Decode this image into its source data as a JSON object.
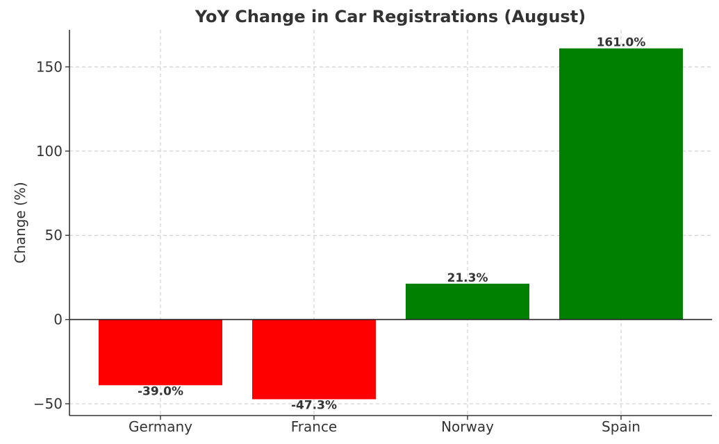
{
  "chart_data": {
    "type": "bar",
    "title": "YoY Change in Car Registrations (August)",
    "xlabel": "",
    "ylabel": "Change (%)",
    "categories": [
      "Germany",
      "France",
      "Norway",
      "Spain"
    ],
    "values": [
      -39.0,
      -47.3,
      21.3,
      161.0
    ],
    "data_labels": [
      "-39.0%",
      "-47.3%",
      "21.3%",
      "161.0%"
    ],
    "bar_colors": [
      "#ff0000",
      "#ff0000",
      "#008000",
      "#008000"
    ],
    "ylim": [
      -57,
      172
    ],
    "yticks": [
      -50,
      0,
      50,
      100,
      150
    ],
    "ytick_labels": [
      "−50",
      "0",
      "50",
      "100",
      "150"
    ],
    "grid": true,
    "zero_line": true
  }
}
